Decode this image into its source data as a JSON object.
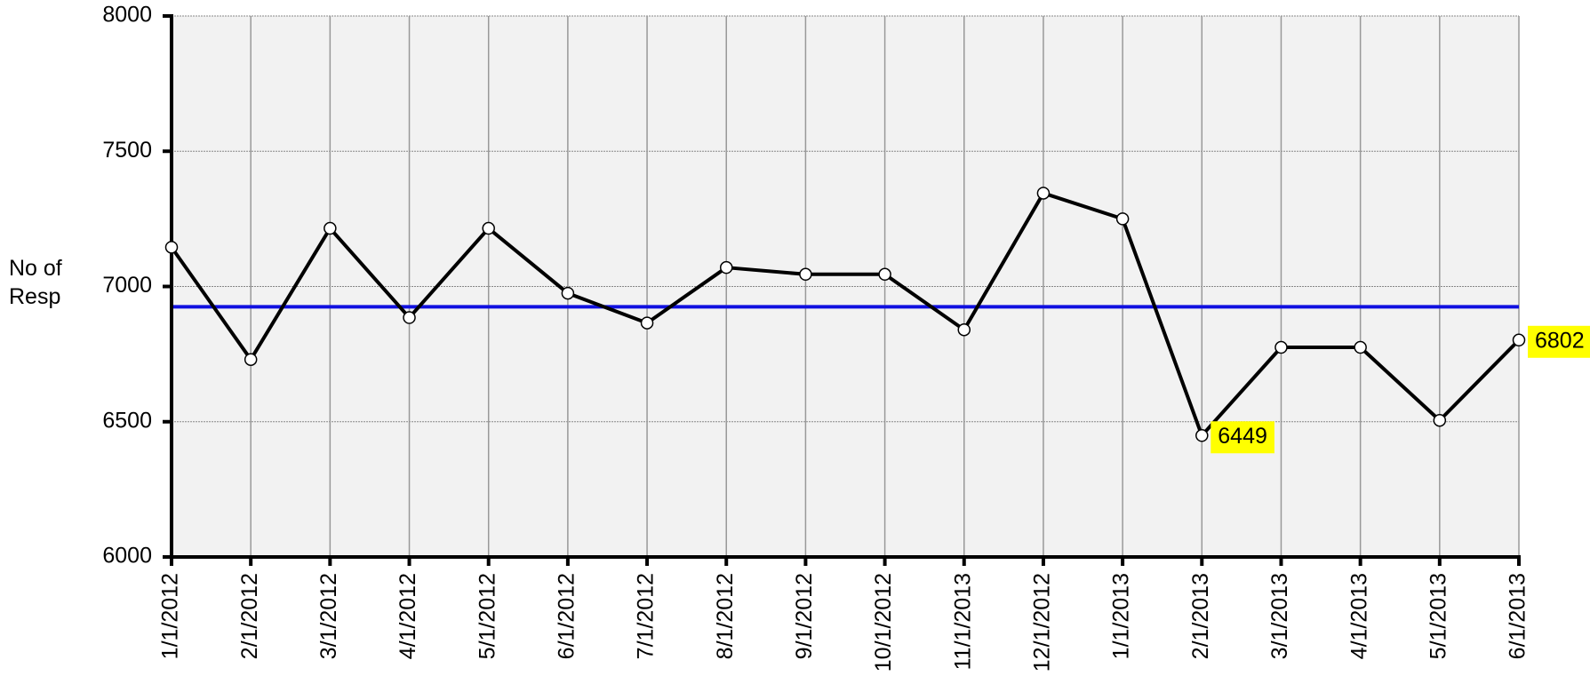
{
  "chart_data": {
    "type": "line",
    "y_label": "No of Resp",
    "categories": [
      "1/1/2012",
      "2/1/2012",
      "3/1/2012",
      "4/1/2012",
      "5/1/2012",
      "6/1/2012",
      "7/1/2012",
      "8/1/2012",
      "9/1/2012",
      "10/1/2012",
      "11/1/2013",
      "12/1/2012",
      "1/1/2013",
      "2/1/2013",
      "3/1/2013",
      "4/1/2013",
      "5/1/2013",
      "6/1/2013"
    ],
    "series": [
      {
        "name": "No of Resp",
        "color": "#000000",
        "values": [
          7145,
          6730,
          7215,
          6885,
          7215,
          6975,
          6865,
          7070,
          7045,
          7045,
          6840,
          7345,
          7250,
          6449,
          6775,
          6775,
          6505,
          6802
        ]
      }
    ],
    "labeled_points": [
      13,
      17
    ],
    "label_color": "#ffff00",
    "reference_line": {
      "value": 6925,
      "color": "#1010e0"
    },
    "ylim": [
      6000,
      8000
    ],
    "yticks": [
      6000,
      6500,
      7000,
      7500,
      8000
    ],
    "grid": true
  }
}
